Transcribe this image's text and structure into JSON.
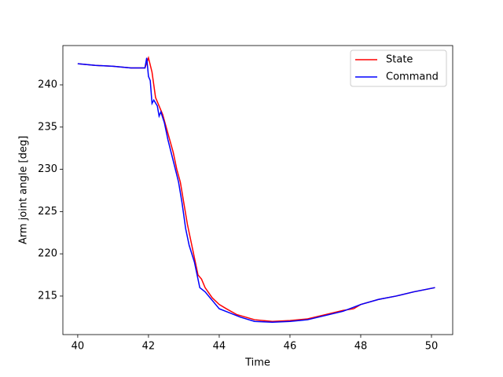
{
  "chart_data": {
    "type": "line",
    "xlabel": "Time",
    "ylabel": "Arm joint angle [deg]",
    "xlim": [
      39.58,
      50.6
    ],
    "ylim": [
      210.44,
      244.65
    ],
    "xticks": [
      40,
      42,
      44,
      46,
      48,
      50
    ],
    "yticks": [
      215,
      220,
      225,
      230,
      235,
      240
    ],
    "legend": "upper right",
    "series": [
      {
        "name": "State",
        "color": "#ff0000",
        "x": [
          40.0,
          40.5,
          41.0,
          41.5,
          41.9,
          42.0,
          42.1,
          42.2,
          42.3,
          42.4,
          42.5,
          42.6,
          42.7,
          42.8,
          42.9,
          43.0,
          43.1,
          43.2,
          43.3,
          43.4,
          43.5,
          43.6,
          43.8,
          44.0,
          44.2,
          44.5,
          45.0,
          45.5,
          46.0,
          46.5,
          47.0,
          47.5,
          47.8,
          48.0,
          48.5,
          49.0,
          49.5,
          50.1
        ],
        "values": [
          242.5,
          242.3,
          242.2,
          242.0,
          242.0,
          243.2,
          241.5,
          238.5,
          237.5,
          236.5,
          235.0,
          233.5,
          232.0,
          230.0,
          228.5,
          226.0,
          223.5,
          221.5,
          219.5,
          217.5,
          217.0,
          216.0,
          214.8,
          214.0,
          213.5,
          212.8,
          212.2,
          212.0,
          212.1,
          212.3,
          212.8,
          213.3,
          213.5,
          214.0,
          214.6,
          215.0,
          215.5,
          216.0
        ]
      },
      {
        "name": "Command",
        "color": "#0000ff",
        "x": [
          40.0,
          40.5,
          41.0,
          41.5,
          41.9,
          41.95,
          42.0,
          42.05,
          42.1,
          42.15,
          42.25,
          42.3,
          42.35,
          42.45,
          42.55,
          42.7,
          42.85,
          42.95,
          43.05,
          43.15,
          43.3,
          43.45,
          43.6,
          43.8,
          44.0,
          44.3,
          44.6,
          45.0,
          45.5,
          46.0,
          46.5,
          47.0,
          47.5,
          48.0,
          48.5,
          49.0,
          49.5,
          50.1
        ],
        "values": [
          242.5,
          242.3,
          242.2,
          242.0,
          242.0,
          243.2,
          241.0,
          240.5,
          237.8,
          238.2,
          237.5,
          236.3,
          236.8,
          235.5,
          233.5,
          231.0,
          228.5,
          226.0,
          223.0,
          221.0,
          219.0,
          216.0,
          215.5,
          214.5,
          213.5,
          213.0,
          212.5,
          212.0,
          211.9,
          212.0,
          212.2,
          212.7,
          213.2,
          214.0,
          214.6,
          215.0,
          215.5,
          216.0
        ]
      }
    ]
  }
}
